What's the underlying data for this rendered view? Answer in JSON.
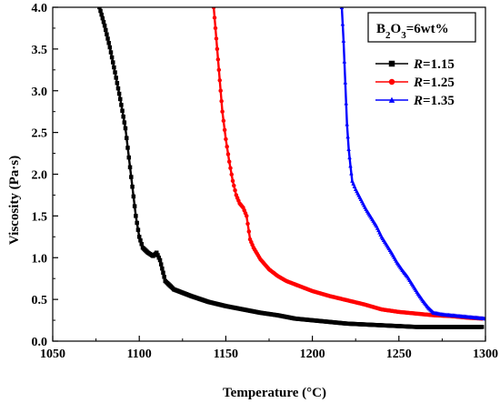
{
  "chart_data": {
    "type": "line",
    "xlabel": "Temperature",
    "xlabel_unit": "(°C)",
    "ylabel": "Viscosity",
    "ylabel_unit": "(Pa·s)",
    "xlim": [
      1050,
      1300
    ],
    "ylim": [
      0.0,
      4.0
    ],
    "x_ticks": [
      "1050",
      "1100",
      "1150",
      "1200",
      "1250",
      "1300"
    ],
    "y_ticks": [
      "0.0",
      "0.5",
      "1.0",
      "1.5",
      "2.0",
      "2.5",
      "3.0",
      "3.5",
      "4.0"
    ],
    "annotation": {
      "prefix": "B",
      "sub1": "2",
      "mid": "O",
      "sub2": "3",
      "suffix": "=6wt%"
    },
    "legend_position": "top-right",
    "series": [
      {
        "name": "R=1.15",
        "name_var": "R",
        "name_value": "=1.15",
        "color": "#000000",
        "marker": "square",
        "x": [
          1077,
          1080,
          1083,
          1086,
          1089,
          1092,
          1094,
          1096,
          1098,
          1100,
          1102,
          1105,
          1108,
          1110,
          1112,
          1115,
          1120,
          1130,
          1140,
          1150,
          1160,
          1170,
          1180,
          1190,
          1200,
          1210,
          1220,
          1230,
          1240,
          1250,
          1260,
          1270,
          1280,
          1290,
          1298
        ],
        "y": [
          4.0,
          3.78,
          3.52,
          3.22,
          2.9,
          2.55,
          2.2,
          1.85,
          1.5,
          1.25,
          1.12,
          1.06,
          1.02,
          1.06,
          0.97,
          0.72,
          0.62,
          0.54,
          0.47,
          0.42,
          0.38,
          0.34,
          0.31,
          0.27,
          0.25,
          0.23,
          0.21,
          0.2,
          0.19,
          0.18,
          0.17,
          0.17,
          0.17,
          0.17,
          0.17
        ]
      },
      {
        "name": "R=1.25",
        "name_var": "R",
        "name_value": "=1.25",
        "color": "#ff0000",
        "marker": "circle",
        "x": [
          1143,
          1144,
          1145,
          1146,
          1147,
          1148,
          1150,
          1152,
          1154,
          1156,
          1158,
          1160,
          1162,
          1164,
          1166,
          1168,
          1170,
          1175,
          1180,
          1185,
          1190,
          1200,
          1210,
          1220,
          1230,
          1240,
          1250,
          1260,
          1270,
          1280,
          1290,
          1298
        ],
        "y": [
          4.0,
          3.75,
          3.5,
          3.25,
          3.0,
          2.75,
          2.42,
          2.15,
          1.92,
          1.75,
          1.65,
          1.6,
          1.5,
          1.22,
          1.12,
          1.05,
          0.98,
          0.86,
          0.78,
          0.72,
          0.68,
          0.6,
          0.54,
          0.49,
          0.44,
          0.38,
          0.35,
          0.33,
          0.31,
          0.3,
          0.28,
          0.27
        ]
      },
      {
        "name": "R=1.35",
        "name_var": "R",
        "name_value": "=1.35",
        "color": "#0000ff",
        "marker": "triangle",
        "x": [
          1217,
          1218,
          1219,
          1220,
          1221,
          1222,
          1223,
          1225,
          1228,
          1231,
          1234,
          1237,
          1240,
          1243,
          1246,
          1249,
          1252,
          1255,
          1258,
          1261,
          1264,
          1267,
          1270,
          1275,
          1280,
          1285,
          1290,
          1295,
          1300
        ],
        "y": [
          4.0,
          3.6,
          3.1,
          2.6,
          2.3,
          2.1,
          1.92,
          1.82,
          1.7,
          1.58,
          1.48,
          1.38,
          1.25,
          1.15,
          1.05,
          0.94,
          0.85,
          0.77,
          0.67,
          0.57,
          0.48,
          0.4,
          0.34,
          0.32,
          0.31,
          0.3,
          0.29,
          0.28,
          0.27
        ]
      }
    ]
  }
}
